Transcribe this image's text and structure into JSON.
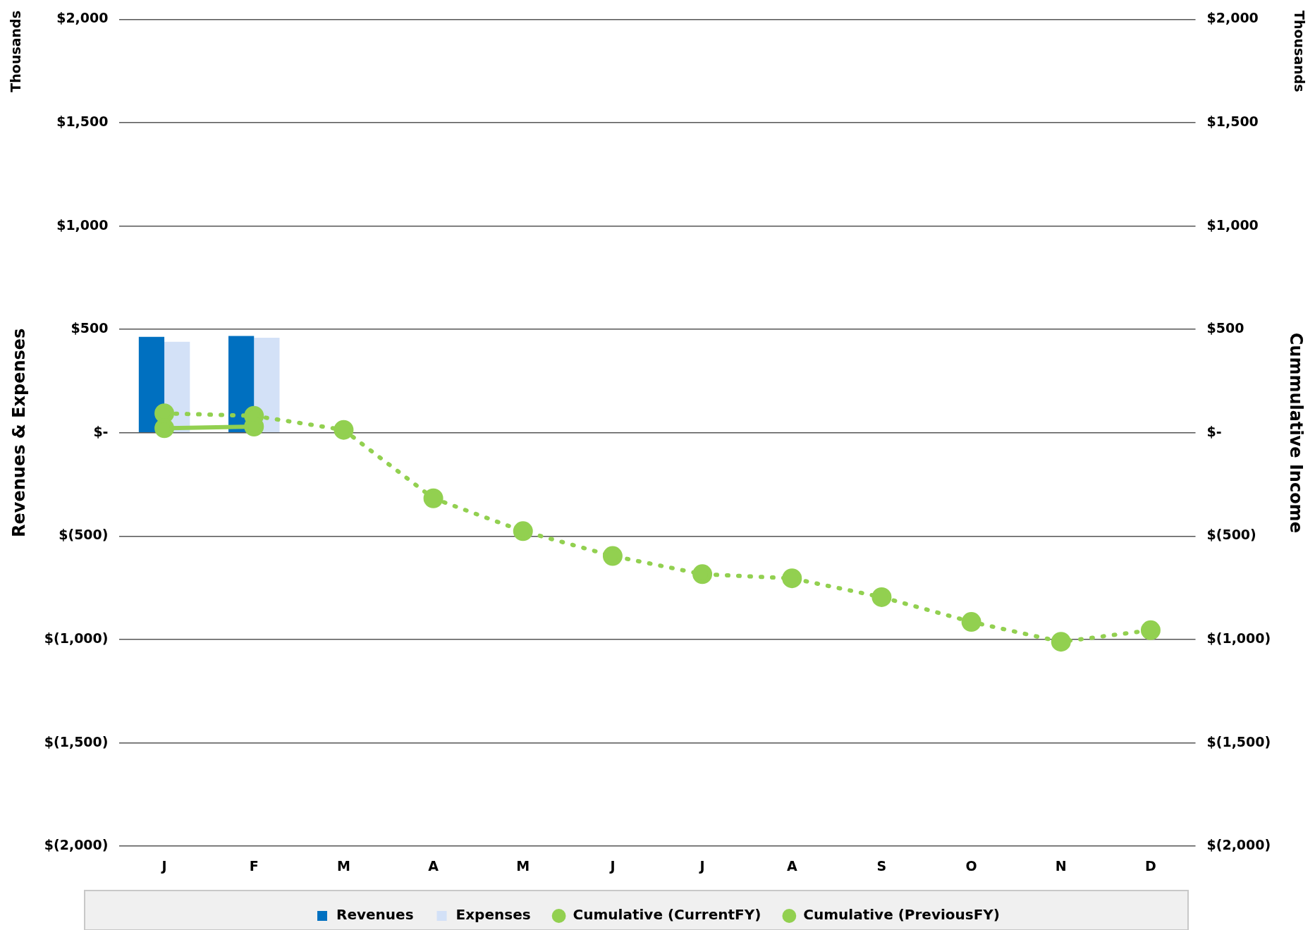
{
  "chart_data": {
    "type": "bar",
    "categories": [
      "J",
      "F",
      "M",
      "A",
      "M",
      "J",
      "J",
      "A",
      "S",
      "O",
      "N",
      "D"
    ],
    "ylabel": "Revenues & Expenses",
    "y2label": "Cummulative Income",
    "annotations": [
      "Thousands",
      "Thousands"
    ],
    "series": [
      {
        "name": "Revenues",
        "color": "#0070c0",
        "values": [
          464,
          468,
          null,
          null,
          null,
          null,
          null,
          null,
          null,
          null,
          null,
          null
        ]
      },
      {
        "name": "Expenses",
        "color": "#d3e1f7",
        "values": [
          440,
          460,
          null,
          null,
          null,
          null,
          null,
          null,
          null,
          null,
          null,
          null
        ]
      },
      {
        "name": "Cumulative (CurrentFY)",
        "type": "line",
        "axis": "y2",
        "line_style": "solid",
        "color": "#92d050",
        "values": [
          22,
          30,
          null,
          null,
          null,
          null,
          null,
          null,
          null,
          null,
          null,
          null
        ]
      },
      {
        "name": "Cumulative (PreviousFY)",
        "type": "line",
        "axis": "y2",
        "line_style": "dotted",
        "color": "#92d050",
        "values": [
          94,
          82,
          14,
          -317,
          -476,
          -596,
          -684,
          -704,
          -795,
          -915,
          -1011,
          -955
        ]
      }
    ],
    "ylim": [
      -2000,
      2000
    ],
    "y2lim": [
      -2000,
      2000
    ],
    "yticks": [
      {
        "value": -2000,
        "label": "$(2,000)"
      },
      {
        "value": -1500,
        "label": "$(1,500)"
      },
      {
        "value": -1000,
        "label": "$(1,000)"
      },
      {
        "value": -500,
        "label": "$(500)"
      },
      {
        "value": 0,
        "label": "$-"
      },
      {
        "value": 500,
        "label": "$500"
      },
      {
        "value": 1000,
        "label": "$1,000"
      },
      {
        "value": 1500,
        "label": "$1,500"
      },
      {
        "value": 2000,
        "label": "$2,000"
      }
    ],
    "y2ticks": [
      {
        "value": -2000,
        "label": "$(2,000)"
      },
      {
        "value": -1500,
        "label": "$(1,500)"
      },
      {
        "value": -1000,
        "label": "$(1,000)"
      },
      {
        "value": -500,
        "label": "$(500)"
      },
      {
        "value": 0,
        "label": "$-"
      },
      {
        "value": 500,
        "label": "$500"
      },
      {
        "value": 1000,
        "label": "$1,000"
      },
      {
        "value": 1500,
        "label": "$1,500"
      },
      {
        "value": 2000,
        "label": "$2,000"
      }
    ],
    "grid": "y",
    "legend": "bottom",
    "marker": "circle"
  }
}
